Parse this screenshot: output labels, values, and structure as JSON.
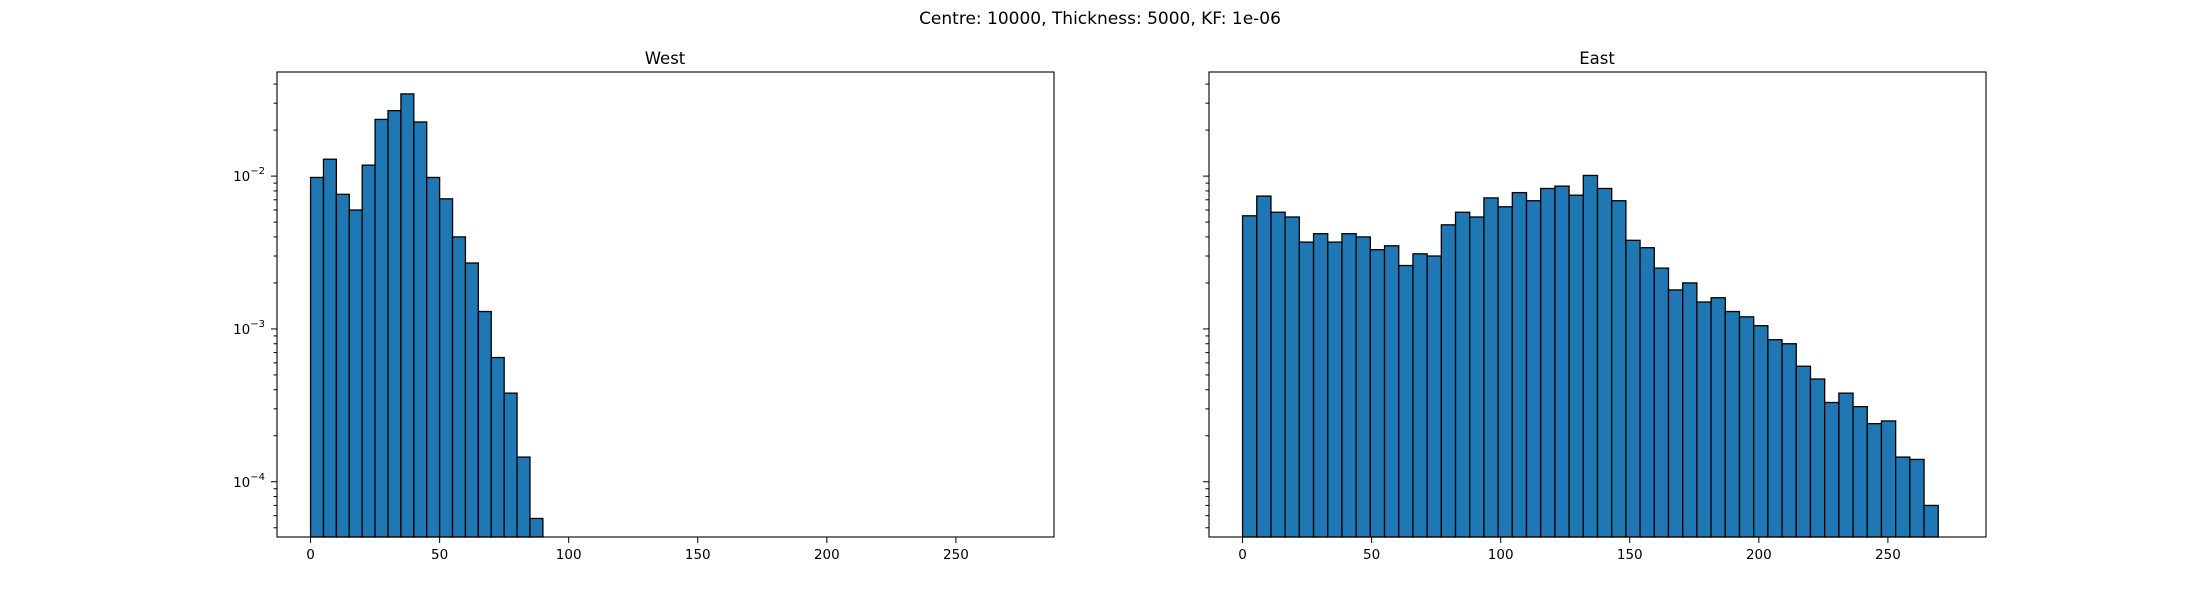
{
  "figure": {
    "suptitle": "Centre: 10000, Thickness: 5000, KF: 1e-06"
  },
  "chart_data": [
    {
      "type": "bar",
      "title": "West",
      "xlabel": "",
      "ylabel": "",
      "yscale": "log",
      "xlim": [
        -13,
        288
      ],
      "ylim": [
        4.35e-05,
        0.048
      ],
      "xticks": [
        0,
        50,
        100,
        150,
        200,
        250
      ],
      "yticks": [
        {
          "value": 0.0001,
          "mantissa": "10",
          "exponent": "−4"
        },
        {
          "value": 0.001,
          "mantissa": "10",
          "exponent": "−3"
        },
        {
          "value": 0.01,
          "mantissa": "10",
          "exponent": "−2"
        }
      ],
      "bar_color": "#1f77b4",
      "bin_width": 5,
      "x": [
        0,
        5,
        10,
        15,
        20,
        25,
        30,
        35,
        40,
        45,
        50,
        55,
        60,
        65,
        70,
        75,
        80,
        85,
        90,
        95
      ],
      "values": [
        0.0098,
        0.0129,
        0.0076,
        0.006,
        0.0118,
        0.0235,
        0.0268,
        0.0345,
        0.0226,
        0.0098,
        0.0071,
        0.004,
        0.0027,
        0.0013,
        0.00065,
        0.00038,
        0.000145,
        5.75e-05,
        0,
        0
      ]
    },
    {
      "type": "bar",
      "title": "East",
      "xlabel": "",
      "ylabel": "",
      "yscale": "log",
      "xlim": [
        -13,
        288
      ],
      "ylim": [
        4.35e-05,
        0.048
      ],
      "xticks": [
        0,
        50,
        100,
        150,
        200,
        250
      ],
      "yticks": [],
      "bar_color": "#1f77b4",
      "bin_width": 5.5,
      "x": [
        0,
        5.5,
        11,
        16.5,
        22,
        27.5,
        33,
        38.5,
        44,
        49.5,
        55,
        60.5,
        66,
        71.5,
        77,
        82.5,
        88,
        93.5,
        99,
        104.5,
        110,
        115.5,
        121,
        126.5,
        132,
        137.5,
        143,
        148.5,
        154,
        159.5,
        165,
        170.5,
        176,
        181.5,
        187,
        192.5,
        198,
        203.5,
        209,
        214.5,
        220,
        225.5,
        231,
        236.5,
        242,
        247.5,
        253,
        258.5,
        264
      ],
      "values": [
        0.0055,
        0.0074,
        0.0058,
        0.0054,
        0.0037,
        0.0042,
        0.0037,
        0.0042,
        0.004,
        0.0033,
        0.0035,
        0.0026,
        0.0031,
        0.003,
        0.0048,
        0.0058,
        0.0054,
        0.0072,
        0.0063,
        0.0078,
        0.0069,
        0.0083,
        0.0086,
        0.0075,
        0.0101,
        0.0083,
        0.0069,
        0.0038,
        0.0034,
        0.0025,
        0.0018,
        0.002,
        0.0015,
        0.0016,
        0.0013,
        0.0012,
        0.00105,
        0.00085,
        0.0008,
        0.00057,
        0.00047,
        0.00033,
        0.00038,
        0.00031,
        0.00024,
        0.00025,
        0.000145,
        0.00014,
        7e-05
      ]
    }
  ]
}
